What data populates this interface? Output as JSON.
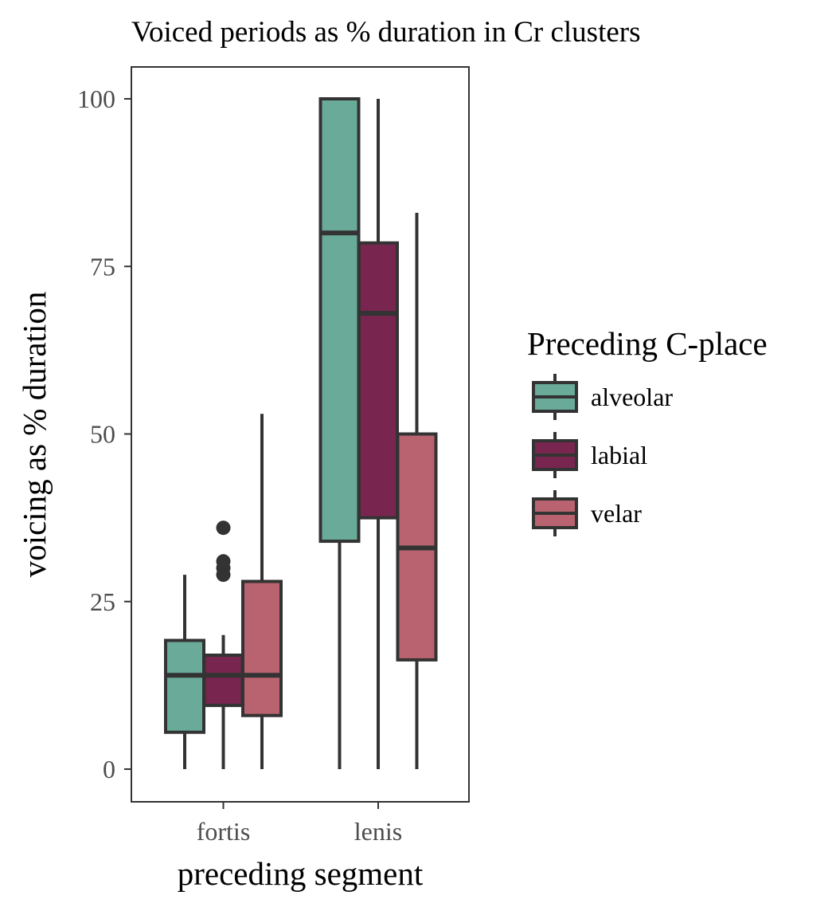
{
  "chart_data": {
    "type": "boxplot",
    "title": "Voiced periods as % duration in Cr clusters",
    "xlabel": "preceding segment",
    "ylabel": "voicing as % duration",
    "categories": [
      "fortis",
      "lenis"
    ],
    "ylim": [
      -5,
      105
    ],
    "yticks": [
      0,
      25,
      50,
      75,
      100
    ],
    "grid": false,
    "legend": {
      "title": "Preceding C-place",
      "placement": "right"
    },
    "series": [
      {
        "name": "alveolar",
        "color": "#6aaa99",
        "boxes": [
          {
            "category": "fortis",
            "min": 0,
            "q1": 5.5,
            "median": 14,
            "q3": 19.2,
            "max": 29,
            "outliers": []
          },
          {
            "category": "lenis",
            "min": 0,
            "q1": 34,
            "median": 80,
            "q3": 100,
            "max": 100,
            "outliers": []
          }
        ]
      },
      {
        "name": "labial",
        "color": "#78264f",
        "boxes": [
          {
            "category": "fortis",
            "min": 0,
            "q1": 9.5,
            "median": 14,
            "q3": 17,
            "max": 20,
            "outliers": [
              29,
              30,
              31,
              36
            ]
          },
          {
            "category": "lenis",
            "min": 0,
            "q1": 37.5,
            "median": 68,
            "q3": 78.5,
            "max": 100,
            "outliers": []
          }
        ]
      },
      {
        "name": "velar",
        "color": "#b8636f",
        "boxes": [
          {
            "category": "fortis",
            "min": 0,
            "q1": 8,
            "median": 14,
            "q3": 28,
            "max": 53,
            "outliers": []
          },
          {
            "category": "lenis",
            "min": 0,
            "q1": 16.3,
            "median": 33,
            "q3": 50,
            "max": 83,
            "outliers": []
          }
        ]
      }
    ]
  }
}
